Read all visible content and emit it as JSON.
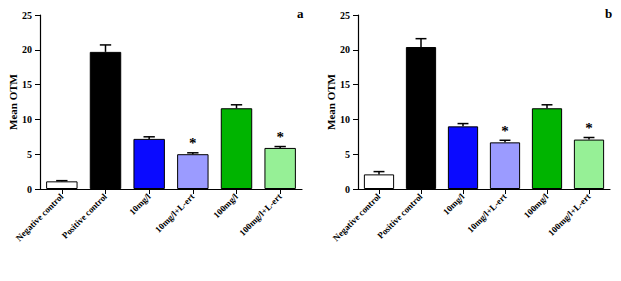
{
  "chart_data": [
    {
      "type": "bar",
      "title": "a",
      "y_label": "Mean OTM",
      "categories": [
        "Negative control",
        "Positive control",
        "10mg/l",
        "10mg/l+L-ert",
        "100mg/l",
        "100mg/l+L-ert"
      ],
      "values": [
        1.1,
        19.7,
        7.2,
        5.0,
        11.6,
        5.9
      ],
      "errors": [
        0.1,
        1.0,
        0.3,
        0.2,
        0.5,
        0.2
      ],
      "colors": [
        "#ffffff",
        "#000000",
        "#0a0aff",
        "#9b9bff",
        "#00b400",
        "#96f096"
      ],
      "annotations": [
        {
          "category": "10mg/l+L-ert",
          "text": "*"
        },
        {
          "category": "100mg/l+L-ert",
          "text": "*"
        }
      ],
      "ylim": [
        0,
        25
      ],
      "yticks": [
        0,
        5,
        10,
        15,
        20,
        25
      ],
      "grid": false
    },
    {
      "type": "bar",
      "title": "b",
      "y_label": "Mean OTM",
      "categories": [
        "Negative control",
        "Positive control",
        "10mg/l",
        "10mg/l+L-ert",
        "100mg/l",
        "100mg/l+L-ert"
      ],
      "values": [
        2.1,
        20.4,
        9.0,
        6.7,
        11.6,
        7.1
      ],
      "errors": [
        0.4,
        1.2,
        0.4,
        0.3,
        0.5,
        0.3
      ],
      "colors": [
        "#ffffff",
        "#000000",
        "#0a0aff",
        "#9b9bff",
        "#00b400",
        "#96f096"
      ],
      "annotations": [
        {
          "category": "10mg/l+L-ert",
          "text": "*"
        },
        {
          "category": "100mg/l+L-ert",
          "text": "*"
        }
      ],
      "ylim": [
        0,
        25
      ],
      "yticks": [
        0,
        5,
        10,
        15,
        20,
        25
      ],
      "grid": false
    }
  ]
}
